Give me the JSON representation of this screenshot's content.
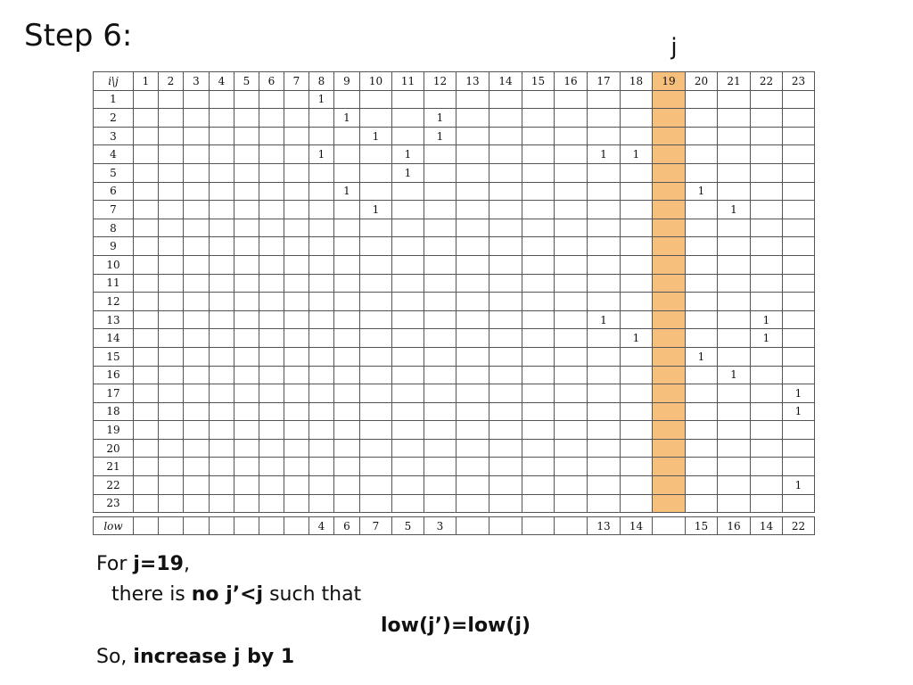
{
  "title": "Step 6:",
  "j_marker": "j",
  "highlight_column": "19",
  "colors": {
    "highlight": "#f6bf7b",
    "grid_line": "#555555"
  },
  "header_corner": "i\\j",
  "columns": [
    "1",
    "2",
    "3",
    "4",
    "5",
    "6",
    "7",
    "8",
    "9",
    "10",
    "11",
    "12",
    "13",
    "14",
    "15",
    "16",
    "17",
    "18",
    "19",
    "20",
    "21",
    "22",
    "23"
  ],
  "rows": [
    {
      "label": "1",
      "ones": [
        "8"
      ]
    },
    {
      "label": "2",
      "ones": [
        "9",
        "12"
      ]
    },
    {
      "label": "3",
      "ones": [
        "10",
        "12"
      ]
    },
    {
      "label": "4",
      "ones": [
        "8",
        "11",
        "17",
        "18"
      ]
    },
    {
      "label": "5",
      "ones": [
        "11"
      ]
    },
    {
      "label": "6",
      "ones": [
        "9",
        "20"
      ]
    },
    {
      "label": "7",
      "ones": [
        "10",
        "21"
      ]
    },
    {
      "label": "8",
      "ones": []
    },
    {
      "label": "9",
      "ones": []
    },
    {
      "label": "10",
      "ones": []
    },
    {
      "label": "11",
      "ones": []
    },
    {
      "label": "12",
      "ones": []
    },
    {
      "label": "13",
      "ones": [
        "17",
        "22"
      ]
    },
    {
      "label": "14",
      "ones": [
        "18",
        "22"
      ]
    },
    {
      "label": "15",
      "ones": [
        "20"
      ]
    },
    {
      "label": "16",
      "ones": [
        "21"
      ]
    },
    {
      "label": "17",
      "ones": [
        "23"
      ]
    },
    {
      "label": "18",
      "ones": [
        "23"
      ]
    },
    {
      "label": "19",
      "ones": []
    },
    {
      "label": "20",
      "ones": []
    },
    {
      "label": "21",
      "ones": []
    },
    {
      "label": "22",
      "ones": [
        "23"
      ]
    },
    {
      "label": "23",
      "ones": []
    }
  ],
  "cell_value": "1",
  "low_label": "low",
  "low_values": [
    "",
    "",
    "",
    "",
    "",
    "",
    "",
    "4",
    "6",
    "7",
    "5",
    "3",
    "",
    "",
    "",
    "",
    "13",
    "14",
    "",
    "15",
    "16",
    "14",
    "22"
  ],
  "caption": {
    "line1_prefix": "For ",
    "line1_bold": "j=19",
    "line1_suffix": ",",
    "line2_prefix": "there is ",
    "line2_bold": "no j’<j",
    "line2_suffix": " such that",
    "line3_bold": "low(j’)=low(j)",
    "line4_prefix": "So, ",
    "line4_bold": "increase j by 1"
  }
}
